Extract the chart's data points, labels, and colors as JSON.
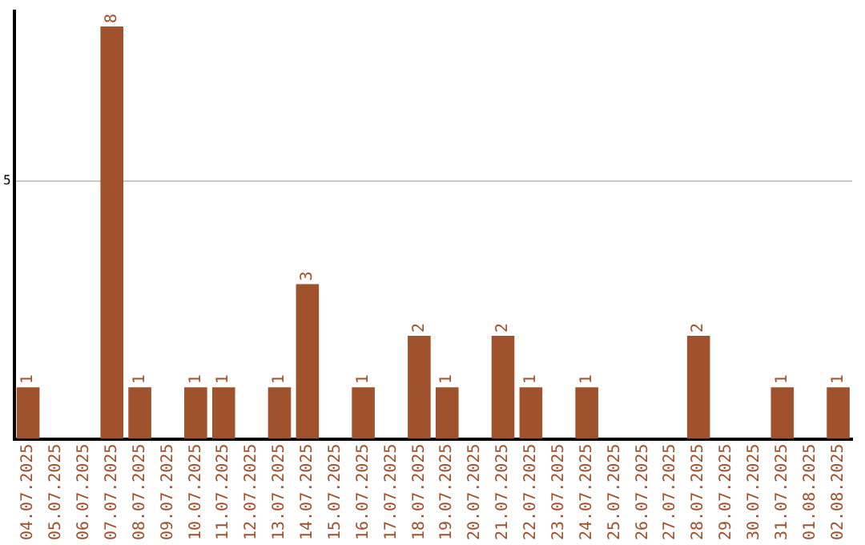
{
  "chart_data": {
    "type": "bar",
    "categories": [
      "04.07.2025",
      "05.07.2025",
      "06.07.2025",
      "07.07.2025",
      "08.07.2025",
      "09.07.2025",
      "10.07.2025",
      "11.07.2025",
      "12.07.2025",
      "13.07.2025",
      "14.07.2025",
      "15.07.2025",
      "16.07.2025",
      "17.07.2025",
      "18.07.2025",
      "19.07.2025",
      "20.07.2025",
      "21.07.2025",
      "22.07.2025",
      "23.07.2025",
      "24.07.2025",
      "25.07.2025",
      "26.07.2025",
      "27.07.2025",
      "28.07.2025",
      "29.07.2025",
      "30.07.2025",
      "31.07.2025",
      "01.08.2025",
      "02.08.2025"
    ],
    "values": [
      1,
      0,
      0,
      8,
      1,
      0,
      1,
      1,
      0,
      1,
      3,
      0,
      1,
      0,
      2,
      1,
      0,
      2,
      1,
      0,
      1,
      0,
      0,
      0,
      2,
      0,
      0,
      1,
      0,
      1
    ],
    "value_labels": [
      "1",
      null,
      null,
      "8",
      "1",
      null,
      "1",
      "1",
      null,
      "1",
      "3",
      null,
      "1",
      null,
      "2",
      "1",
      null,
      "2",
      "1",
      null,
      "1",
      null,
      null,
      null,
      "2",
      null,
      null,
      "1",
      null,
      "1"
    ],
    "color": "#a0522d",
    "ylim": [
      0,
      8.3
    ],
    "yticks": [
      5
    ],
    "grid": "y",
    "legend": false
  }
}
